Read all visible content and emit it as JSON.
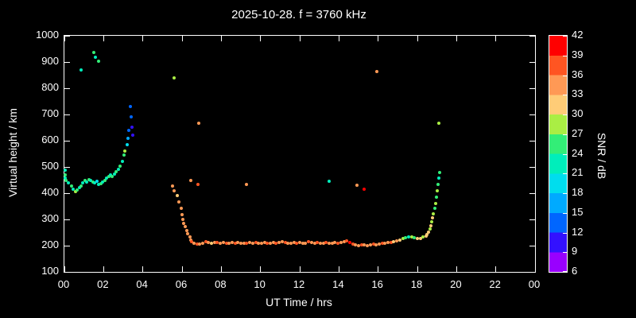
{
  "title": "2025-10-28. f = 3760 kHz",
  "chart_data": {
    "type": "scatter",
    "title": "2025-10-28. f = 3760 kHz",
    "xlabel": "UT Time / hrs",
    "ylabel": "Virtual height / km",
    "cblabel": "SNR / dB",
    "xlim": [
      0,
      24
    ],
    "ylim": [
      100,
      1000
    ],
    "background": "#000000",
    "foreground": "#ffffff",
    "x_tick_values": [
      0,
      2,
      4,
      6,
      8,
      10,
      12,
      14,
      16,
      18,
      20,
      22,
      24
    ],
    "x_tick_labels": [
      "00",
      "02",
      "04",
      "06",
      "08",
      "10",
      "12",
      "14",
      "16",
      "18",
      "20",
      "22",
      "00"
    ],
    "y_tick_values": [
      100,
      200,
      300,
      400,
      500,
      600,
      700,
      800,
      900,
      1000
    ],
    "y_tick_labels": [
      "100",
      "200",
      "300",
      "400",
      "500",
      "600",
      "700",
      "800",
      "900",
      "1000"
    ],
    "colorbar": {
      "min": 6,
      "max": 42,
      "tick_values": [
        6,
        9,
        12,
        15,
        18,
        21,
        24,
        27,
        30,
        33,
        36,
        39,
        42
      ],
      "tick_labels": [
        "6",
        "9",
        "12",
        "15",
        "18",
        "21",
        "24",
        "27",
        "30",
        "33",
        "36",
        "39",
        "42"
      ],
      "palette": [
        "#9900ff",
        "#3311ff",
        "#0066ff",
        "#00aaff",
        "#00ddee",
        "#00eebb",
        "#33ee77",
        "#aaee44",
        "#ffcc77",
        "#ff9955",
        "#ff5522",
        "#ff0000"
      ]
    },
    "points": [
      [
        0.03,
        487,
        21
      ],
      [
        0.03,
        470,
        24
      ],
      [
        0.06,
        458,
        21
      ],
      [
        0.1,
        448,
        24
      ],
      [
        0.2,
        440,
        21
      ],
      [
        0.35,
        428,
        24
      ],
      [
        0.45,
        415,
        21
      ],
      [
        0.55,
        407,
        27
      ],
      [
        0.65,
        412,
        24
      ],
      [
        0.75,
        420,
        21
      ],
      [
        0.85,
        428,
        24
      ],
      [
        0.85,
        870,
        21
      ],
      [
        0.95,
        438,
        21
      ],
      [
        1.05,
        447,
        24
      ],
      [
        1.15,
        443,
        21
      ],
      [
        1.25,
        452,
        24
      ],
      [
        1.35,
        448,
        21
      ],
      [
        1.45,
        442,
        24
      ],
      [
        1.5,
        935,
        24
      ],
      [
        1.55,
        438,
        21
      ],
      [
        1.6,
        918,
        21
      ],
      [
        1.65,
        444,
        18
      ],
      [
        1.75,
        903,
        24
      ],
      [
        1.75,
        432,
        21
      ],
      [
        1.85,
        436,
        24
      ],
      [
        1.95,
        441,
        21
      ],
      [
        2.05,
        450,
        24
      ],
      [
        2.15,
        459,
        21
      ],
      [
        2.25,
        464,
        24
      ],
      [
        2.35,
        469,
        21
      ],
      [
        2.45,
        465,
        24
      ],
      [
        2.55,
        474,
        21
      ],
      [
        2.65,
        481,
        24
      ],
      [
        2.75,
        490,
        21
      ],
      [
        2.85,
        502,
        24
      ],
      [
        2.95,
        520,
        21
      ],
      [
        3.05,
        544,
        24
      ],
      [
        3.1,
        562,
        27
      ],
      [
        3.2,
        585,
        18
      ],
      [
        3.25,
        610,
        15
      ],
      [
        3.3,
        638,
        12
      ],
      [
        3.35,
        730,
        12
      ],
      [
        3.4,
        692,
        12
      ],
      [
        3.45,
        652,
        9
      ],
      [
        3.5,
        622,
        9
      ],
      [
        5.5,
        428,
        33
      ],
      [
        5.6,
        840,
        27
      ],
      [
        5.6,
        410,
        33
      ],
      [
        5.75,
        392,
        30
      ],
      [
        5.85,
        368,
        33
      ],
      [
        5.95,
        342,
        33
      ],
      [
        6.0,
        318,
        33
      ],
      [
        6.05,
        300,
        33
      ],
      [
        6.1,
        286,
        33
      ],
      [
        6.15,
        272,
        33
      ],
      [
        6.25,
        258,
        33
      ],
      [
        6.3,
        246,
        33
      ],
      [
        6.4,
        234,
        33
      ],
      [
        6.45,
        222,
        33
      ],
      [
        6.45,
        447,
        33
      ],
      [
        6.5,
        214,
        36
      ],
      [
        6.8,
        432,
        36
      ],
      [
        6.85,
        667,
        33
      ],
      [
        6.6,
        210,
        33
      ],
      [
        6.75,
        205,
        36
      ],
      [
        6.9,
        207,
        33
      ],
      [
        7.05,
        210,
        33
      ],
      [
        7.2,
        214,
        36
      ],
      [
        7.35,
        212,
        33
      ],
      [
        7.5,
        210,
        30
      ],
      [
        7.65,
        213,
        33
      ],
      [
        7.8,
        211,
        36
      ],
      [
        7.95,
        209,
        33
      ],
      [
        8.1,
        212,
        33
      ],
      [
        8.25,
        210,
        36
      ],
      [
        8.4,
        208,
        33
      ],
      [
        8.55,
        211,
        33
      ],
      [
        8.7,
        209,
        36
      ],
      [
        8.85,
        211,
        33
      ],
      [
        9.0,
        210,
        33
      ],
      [
        9.15,
        208,
        33
      ],
      [
        9.3,
        210,
        36
      ],
      [
        9.45,
        212,
        33
      ],
      [
        9.6,
        209,
        33
      ],
      [
        9.75,
        211,
        36
      ],
      [
        9.9,
        210,
        33
      ],
      [
        10.05,
        208,
        33
      ],
      [
        10.2,
        211,
        33
      ],
      [
        10.35,
        209,
        36
      ],
      [
        10.5,
        210,
        33
      ],
      [
        10.65,
        212,
        33
      ],
      [
        10.8,
        209,
        36
      ],
      [
        10.95,
        211,
        33
      ],
      [
        11.1,
        214,
        33
      ],
      [
        11.25,
        211,
        36
      ],
      [
        11.4,
        209,
        33
      ],
      [
        11.55,
        210,
        33
      ],
      [
        11.7,
        212,
        33
      ],
      [
        11.85,
        209,
        36
      ],
      [
        12.0,
        211,
        33
      ],
      [
        12.15,
        210,
        33
      ],
      [
        12.3,
        209,
        33
      ],
      [
        12.45,
        214,
        36
      ],
      [
        12.6,
        212,
        33
      ],
      [
        12.75,
        209,
        33
      ],
      [
        12.9,
        211,
        36
      ],
      [
        13.05,
        210,
        33
      ],
      [
        13.2,
        209,
        33
      ],
      [
        13.35,
        211,
        36
      ],
      [
        13.5,
        210,
        33
      ],
      [
        13.65,
        208,
        33
      ],
      [
        13.8,
        211,
        33
      ],
      [
        13.95,
        209,
        36
      ],
      [
        14.1,
        211,
        33
      ],
      [
        14.25,
        216,
        33
      ],
      [
        14.4,
        217,
        36
      ],
      [
        14.55,
        211,
        39
      ],
      [
        14.7,
        206,
        36
      ],
      [
        14.85,
        203,
        33
      ],
      [
        15.0,
        201,
        33
      ],
      [
        15.15,
        202,
        36
      ],
      [
        15.3,
        202,
        33
      ],
      [
        15.45,
        200,
        33
      ],
      [
        15.6,
        203,
        33
      ],
      [
        15.75,
        205,
        36
      ],
      [
        15.9,
        204,
        33
      ],
      [
        16.05,
        206,
        33
      ],
      [
        16.2,
        209,
        36
      ],
      [
        16.35,
        208,
        33
      ],
      [
        16.5,
        211,
        33
      ],
      [
        16.65,
        211,
        36
      ],
      [
        16.8,
        214,
        30
      ],
      [
        16.95,
        217,
        33
      ],
      [
        17.1,
        221,
        30
      ],
      [
        17.25,
        226,
        27
      ],
      [
        17.4,
        229,
        24
      ],
      [
        17.55,
        232,
        21
      ],
      [
        17.7,
        234,
        27
      ],
      [
        17.85,
        231,
        24
      ],
      [
        18.0,
        226,
        30
      ],
      [
        18.15,
        228,
        30
      ],
      [
        18.3,
        234,
        27
      ],
      [
        18.45,
        236,
        30
      ],
      [
        9.3,
        432,
        33
      ],
      [
        13.5,
        446,
        21
      ],
      [
        14.9,
        431,
        33
      ],
      [
        15.3,
        416,
        39
      ],
      [
        15.95,
        864,
        33
      ],
      [
        18.5,
        242,
        30
      ],
      [
        18.57,
        252,
        30
      ],
      [
        18.63,
        263,
        27
      ],
      [
        18.68,
        276,
        30
      ],
      [
        18.73,
        290,
        27
      ],
      [
        18.78,
        305,
        30
      ],
      [
        18.83,
        322,
        27
      ],
      [
        18.88,
        342,
        24
      ],
      [
        18.92,
        362,
        27
      ],
      [
        18.96,
        386,
        24
      ],
      [
        19.0,
        410,
        27
      ],
      [
        19.04,
        434,
        24
      ],
      [
        19.08,
        458,
        21
      ],
      [
        19.12,
        480,
        24
      ],
      [
        19.1,
        668,
        27
      ]
    ]
  }
}
